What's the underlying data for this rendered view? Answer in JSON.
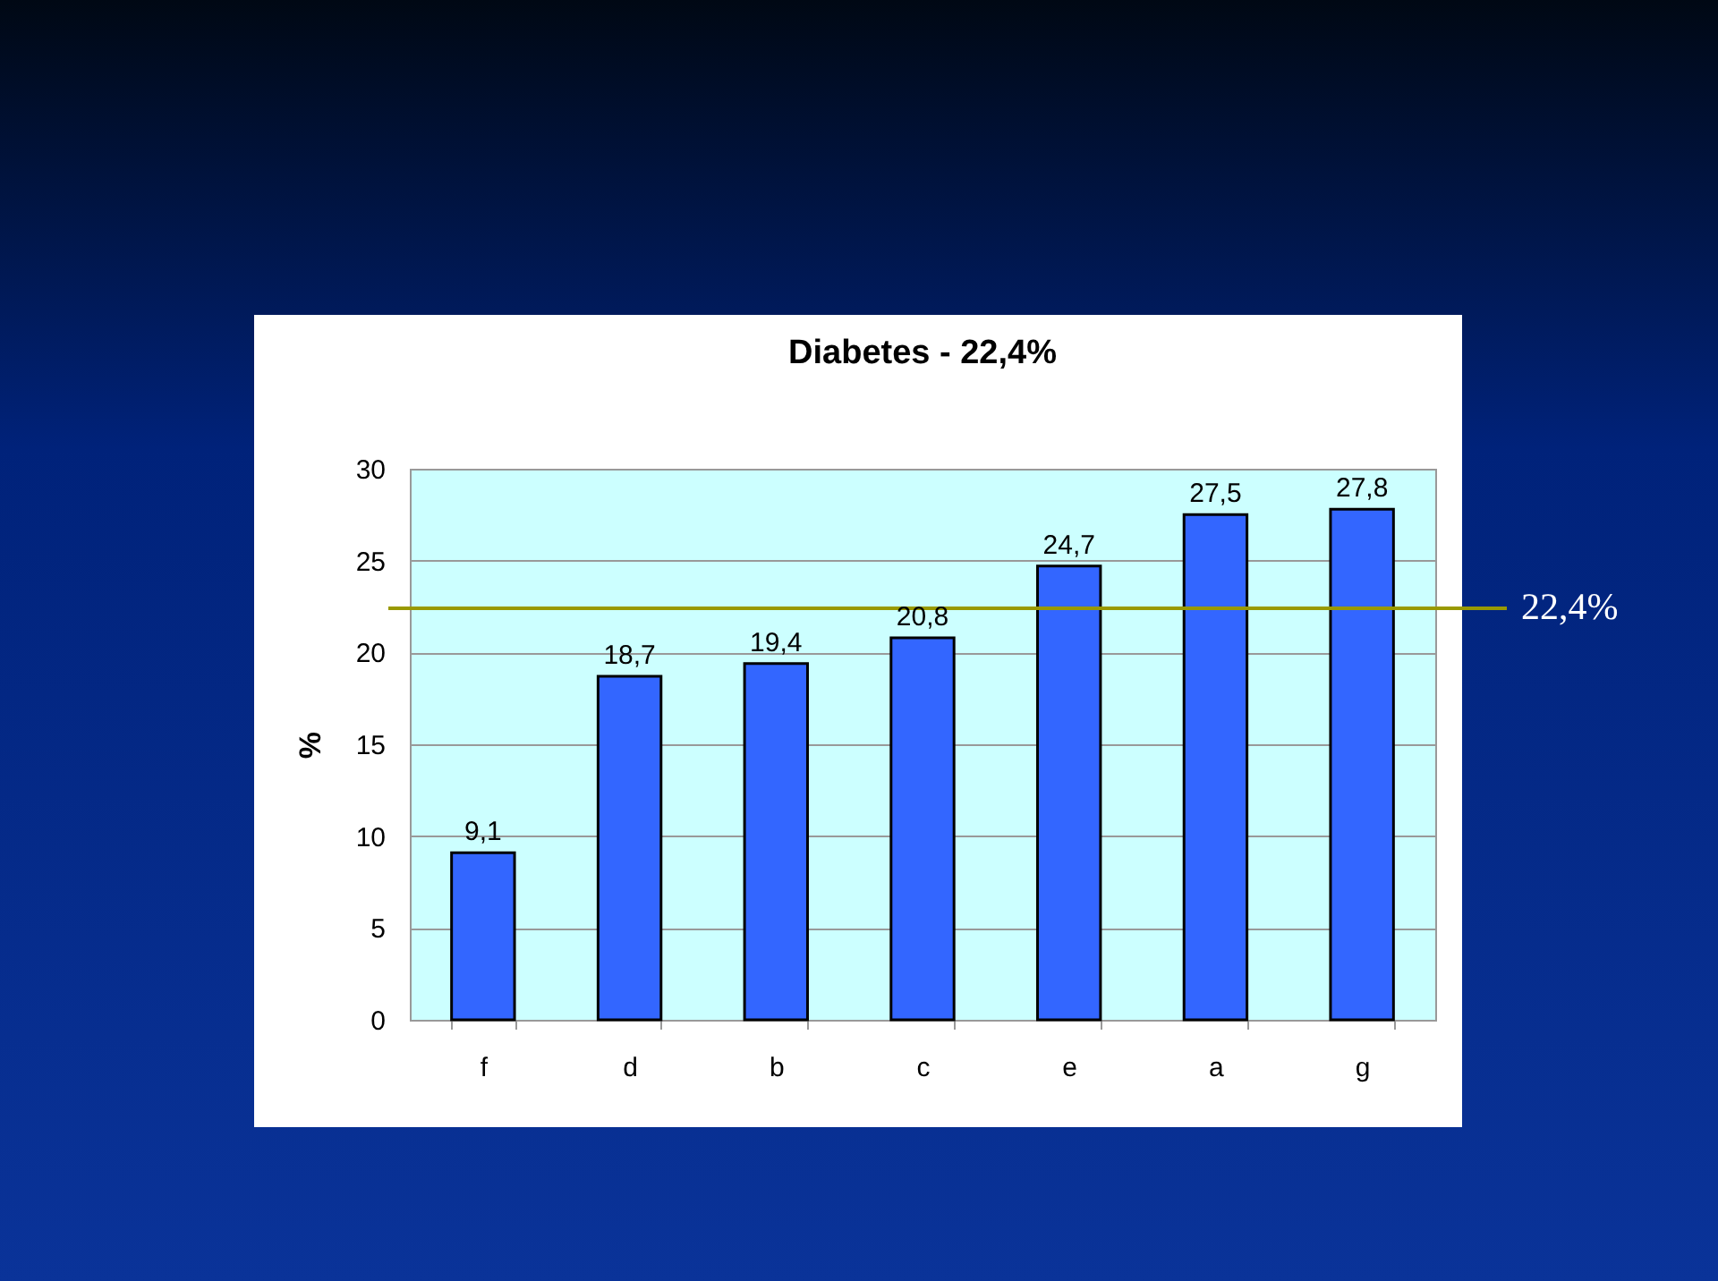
{
  "chart_data": {
    "type": "bar",
    "title": "Diabetes - 22,4%",
    "ylabel": "%",
    "categories": [
      "f",
      "d",
      "b",
      "c",
      "e",
      "a",
      "g"
    ],
    "values": [
      9.1,
      18.7,
      19.4,
      20.8,
      24.7,
      27.5,
      27.8
    ],
    "value_labels": [
      "9,1",
      "18,7",
      "19,4",
      "20,8",
      "24,7",
      "27,5",
      "27,8"
    ],
    "color": "#3366ff",
    "ylim": [
      0,
      30
    ],
    "yticks": [
      0,
      5,
      10,
      15,
      20,
      25,
      30
    ],
    "grid": "y",
    "ref_lines": [
      {
        "axis": "y",
        "value": 22.4,
        "label": "22,4%",
        "color": "#999900"
      }
    ]
  }
}
